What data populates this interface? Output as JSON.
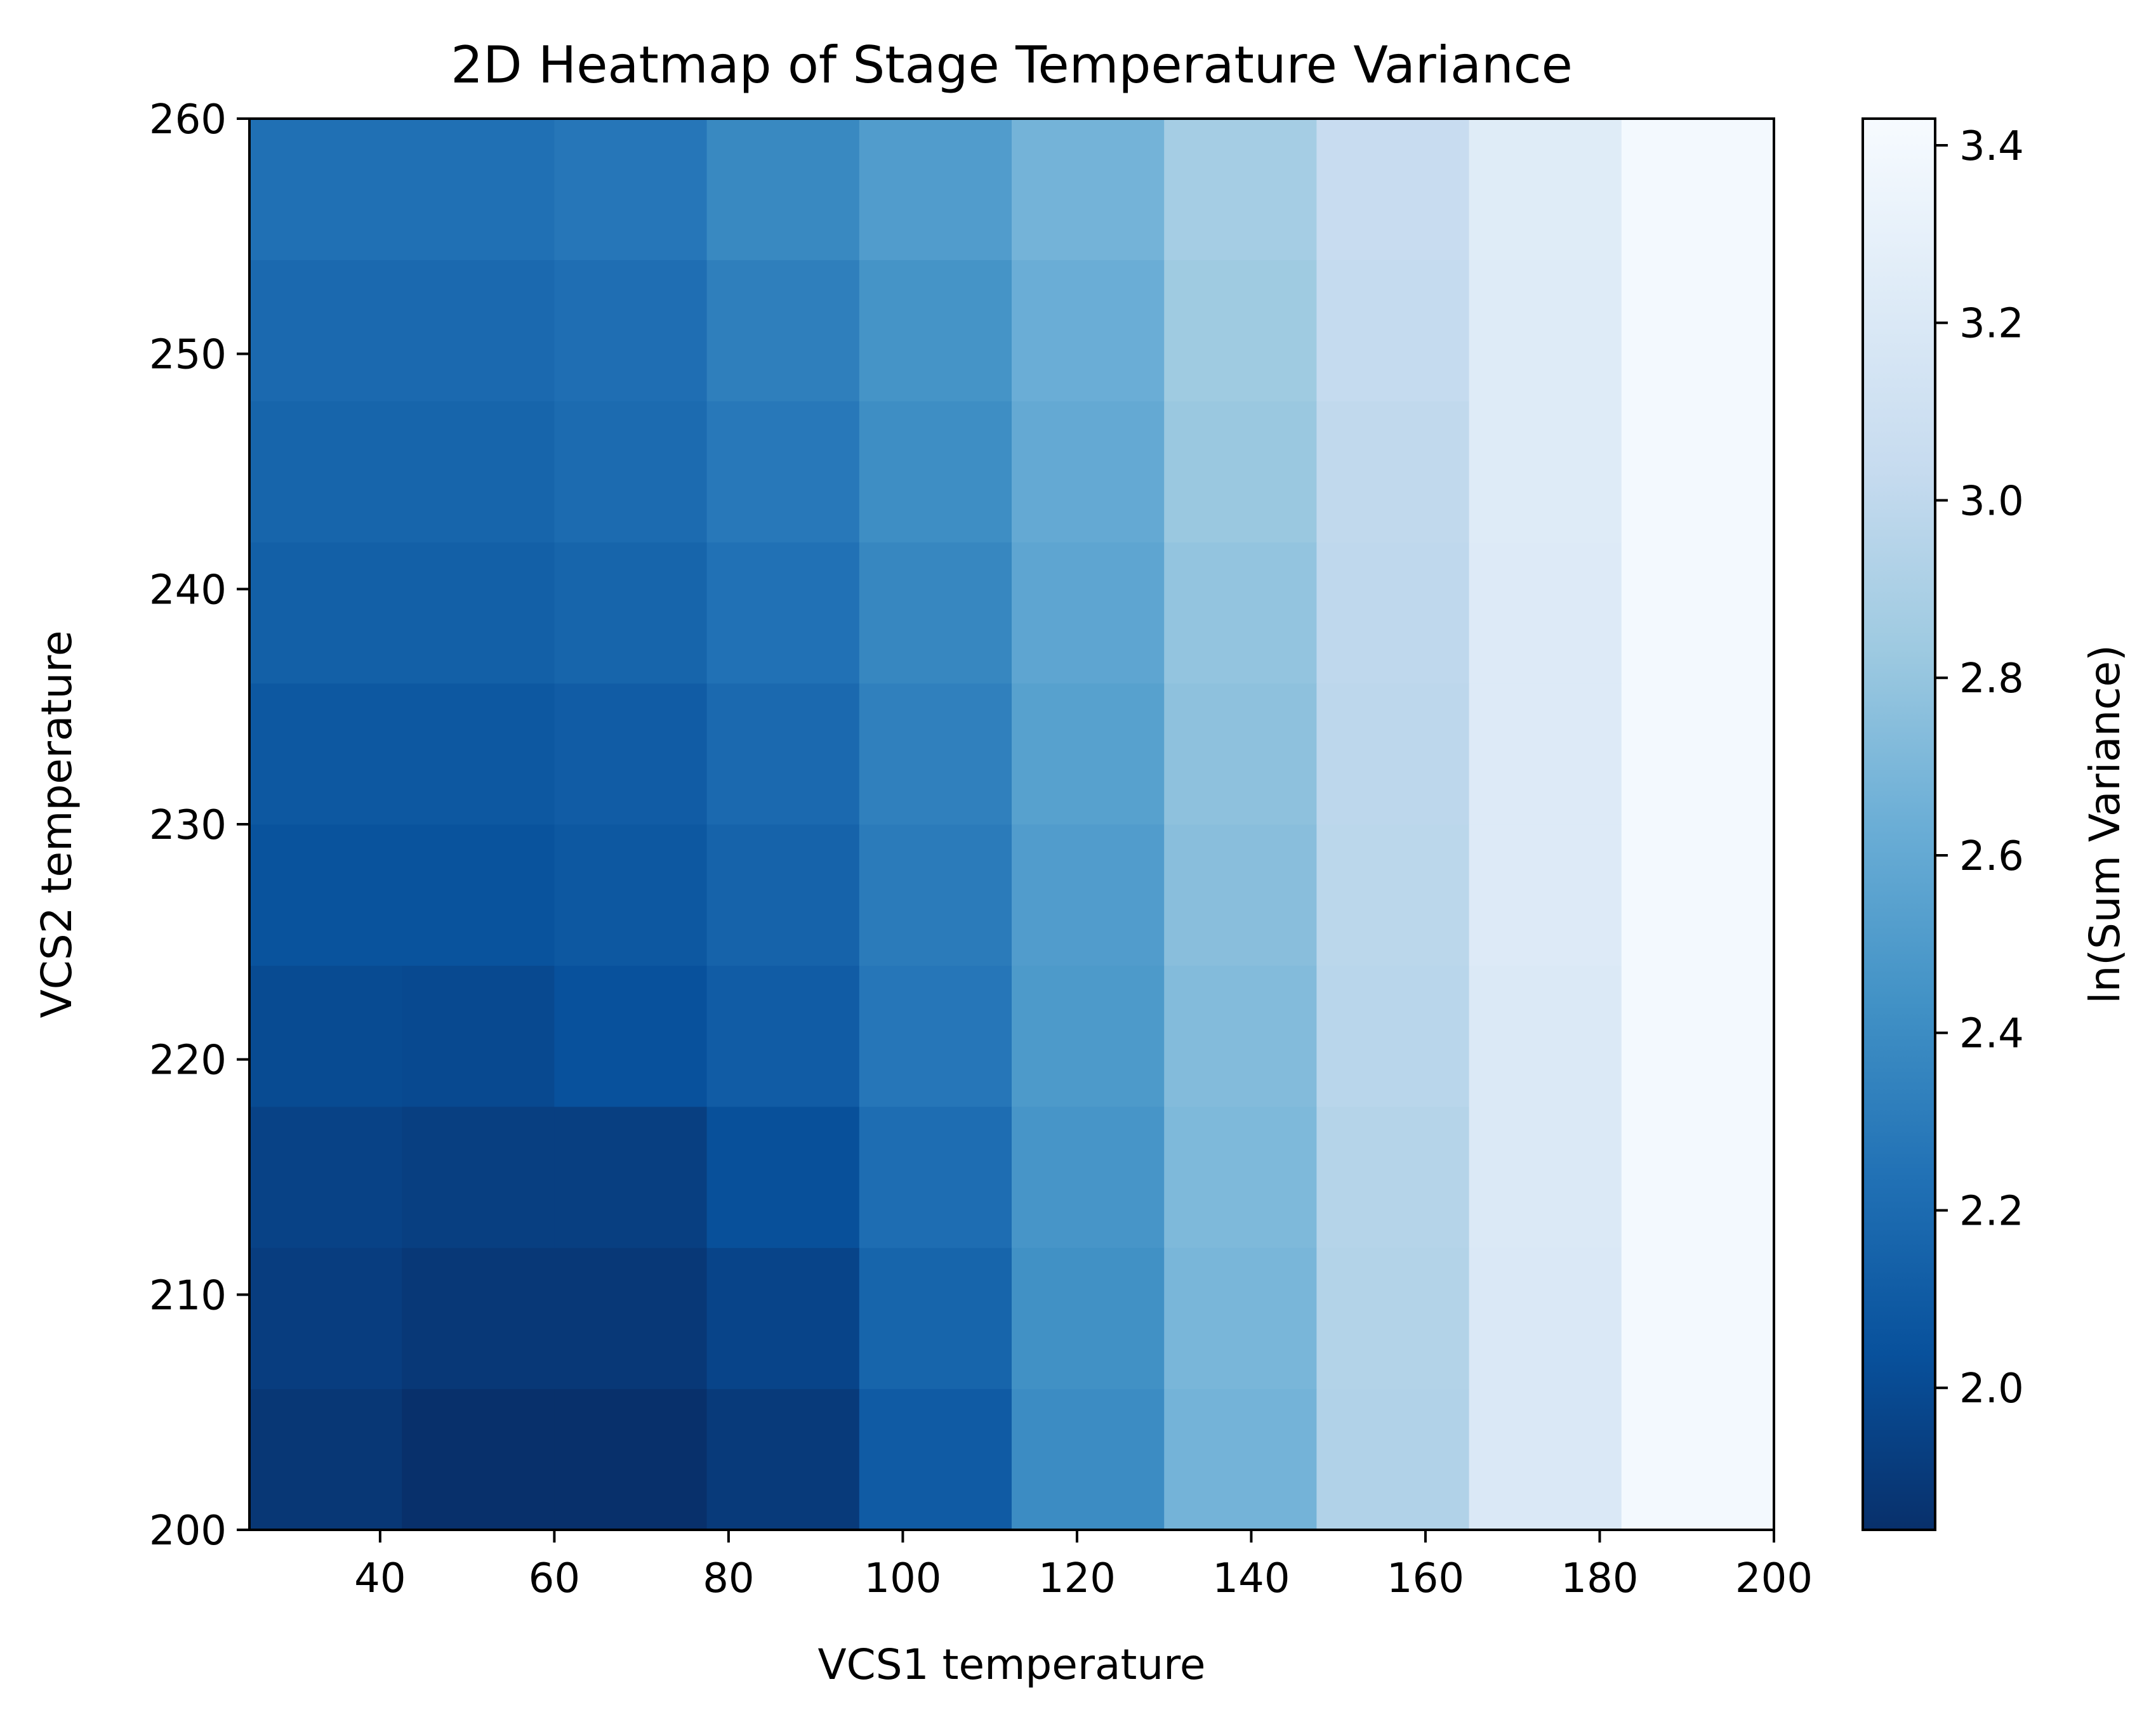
{
  "chart_data": {
    "type": "heatmap",
    "title": "2D Heatmap of Stage Temperature Variance",
    "xlabel": "VCS1 temperature",
    "ylabel": "VCS2 temperature",
    "colorbar_label": "ln(Sum Variance)",
    "colormap": "Blues_r",
    "x_edges": [
      25,
      42.5,
      60,
      77.5,
      95,
      112.5,
      130,
      147.5,
      165,
      182.5,
      200
    ],
    "y_edges": [
      200,
      206,
      212,
      218,
      224,
      230,
      236,
      242,
      248,
      254,
      260
    ],
    "xlim": [
      25,
      200
    ],
    "ylim": [
      200,
      260
    ],
    "x_ticks": [
      40,
      60,
      80,
      100,
      120,
      140,
      160,
      180,
      200
    ],
    "y_ticks": [
      200,
      210,
      220,
      230,
      240,
      250,
      260
    ],
    "color_range": [
      1.84,
      3.43
    ],
    "colorbar_ticks": [
      2.0,
      2.2,
      2.4,
      2.6,
      2.8,
      3.0,
      3.2,
      3.4
    ],
    "colorbar_tick_labels": [
      "2.0",
      "2.2",
      "2.4",
      "2.6",
      "2.8",
      "3.0",
      "3.2",
      "3.4"
    ],
    "values": [
      [
        1.88,
        1.84,
        1.84,
        1.9,
        2.1,
        2.4,
        2.67,
        2.93,
        3.2,
        3.4
      ],
      [
        1.92,
        1.89,
        1.89,
        1.96,
        2.16,
        2.43,
        2.69,
        2.94,
        3.2,
        3.4
      ],
      [
        1.95,
        1.93,
        1.93,
        2.03,
        2.21,
        2.46,
        2.71,
        2.95,
        3.21,
        3.4
      ],
      [
        2.0,
        1.99,
        2.04,
        2.11,
        2.27,
        2.49,
        2.73,
        2.97,
        3.21,
        3.4
      ],
      [
        2.05,
        2.05,
        2.08,
        2.15,
        2.3,
        2.51,
        2.75,
        2.98,
        3.22,
        3.4
      ],
      [
        2.08,
        2.08,
        2.11,
        2.19,
        2.33,
        2.54,
        2.77,
        2.99,
        3.22,
        3.4
      ],
      [
        2.13,
        2.13,
        2.16,
        2.24,
        2.37,
        2.57,
        2.79,
        3.0,
        3.22,
        3.4
      ],
      [
        2.16,
        2.16,
        2.2,
        2.28,
        2.41,
        2.6,
        2.82,
        3.01,
        3.23,
        3.4
      ],
      [
        2.19,
        2.19,
        2.22,
        2.32,
        2.45,
        2.63,
        2.84,
        3.03,
        3.23,
        3.4
      ],
      [
        2.23,
        2.23,
        2.27,
        2.38,
        2.51,
        2.67,
        2.87,
        3.05,
        3.24,
        3.4
      ]
    ]
  }
}
